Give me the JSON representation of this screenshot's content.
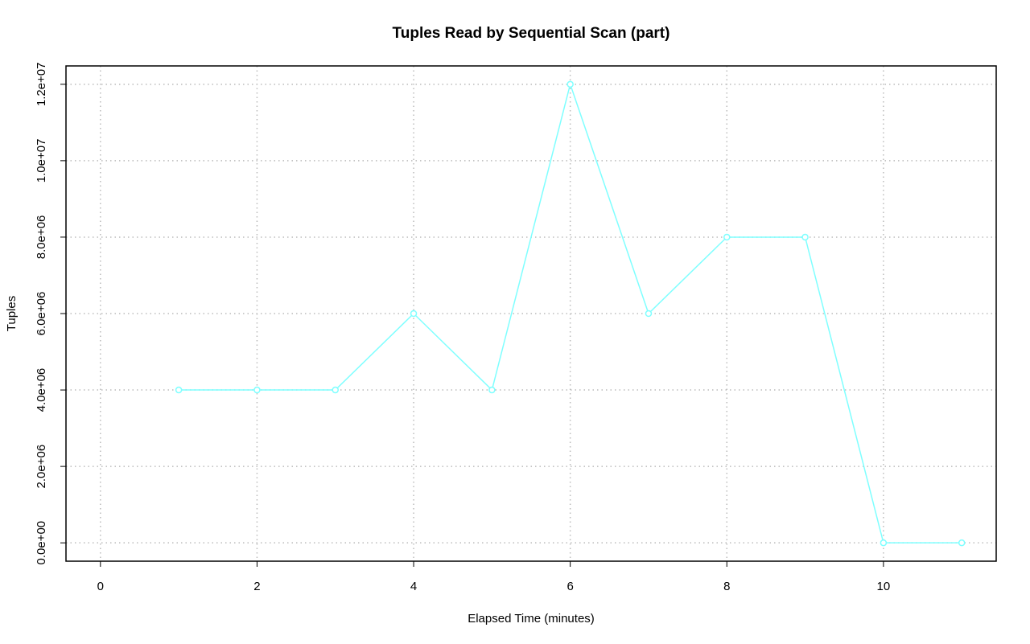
{
  "chart_data": {
    "type": "line",
    "title": "Tuples Read by Sequential Scan (part)",
    "x_label": "Elapsed Time (minutes)",
    "y_label": "Tuples",
    "x": [
      1,
      2,
      3,
      4,
      5,
      6,
      7,
      8,
      9,
      10,
      11
    ],
    "series": [
      {
        "name": "Tuples",
        "color": "#7fffff",
        "values": [
          4000000,
          4000000,
          4000000,
          6000000,
          4000000,
          12000000,
          6000000,
          8000000,
          8000000,
          0,
          0
        ]
      }
    ],
    "xlim": [
      -0.44,
      11.44
    ],
    "xticks": [
      0,
      2,
      4,
      6,
      8,
      10
    ],
    "ylim": [
      -480000,
      12480000
    ],
    "yticks": [
      {
        "value": 0,
        "label": "0.0e+00"
      },
      {
        "value": 2000000,
        "label": "2.0e+06"
      },
      {
        "value": 4000000,
        "label": "4.0e+06"
      },
      {
        "value": 6000000,
        "label": "6.0e+06"
      },
      {
        "value": 8000000,
        "label": "8.0e+06"
      },
      {
        "value": 10000000,
        "label": "1.0e+07"
      },
      {
        "value": 12000000,
        "label": "1.2e+07"
      }
    ],
    "grid": true
  }
}
